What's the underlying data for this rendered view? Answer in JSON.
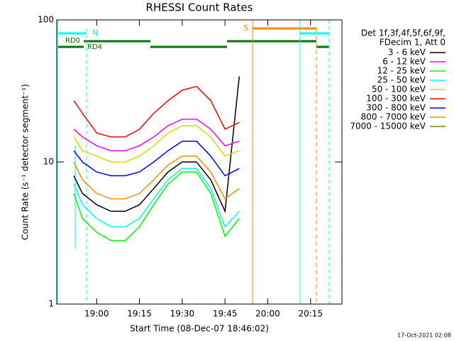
{
  "chart_data": {
    "type": "line",
    "title": "RHESSI Count Rates",
    "ylabel": "Count Rate (s⁻¹ detector segment⁻¹)",
    "xlabel": "Start Time (08-Dec-07 18:46:02)",
    "yscale": "log",
    "ylim": [
      1,
      100
    ],
    "yticks": [
      1,
      10,
      100
    ],
    "xlim": [
      "18:46",
      "20:26"
    ],
    "xticks": [
      "19:00",
      "19:15",
      "19:30",
      "19:45",
      "20:00",
      "20:15"
    ],
    "x": [
      "18:52",
      "18:55",
      "19:00",
      "19:05",
      "19:10",
      "19:15",
      "19:20",
      "19:25",
      "19:30",
      "19:35",
      "19:40",
      "19:45",
      "19:50"
    ],
    "legend_title": [
      "Det 1f,3f,4f,5f,6f,9f,",
      "FDecim 1, Att 0"
    ],
    "annotations": [
      "N",
      "RD0",
      "RD4",
      "S"
    ],
    "timestamp": "17-Oct-2021 02:08",
    "series": [
      {
        "name": "3 - 6 keV",
        "color": "#000000",
        "values": [
          8,
          6,
          5,
          4.5,
          4.5,
          5,
          6.5,
          8.5,
          10,
          10,
          7.5,
          4.5,
          40
        ]
      },
      {
        "name": "6 - 12 keV",
        "color": "#ff00ff",
        "values": [
          17,
          15,
          13,
          12,
          12,
          13,
          15,
          18,
          20,
          20,
          17,
          13,
          14
        ]
      },
      {
        "name": "12 - 25 keV",
        "color": "#00ff00",
        "values": [
          6,
          4,
          3.2,
          2.8,
          2.8,
          3.5,
          5,
          7,
          8.5,
          8.5,
          6,
          3,
          4
        ]
      },
      {
        "name": "25 - 50 keV",
        "color": "#00ffff",
        "values": [
          7,
          5,
          4,
          3.5,
          3.5,
          4,
          5.5,
          7.5,
          9,
          9,
          6.5,
          3.5,
          4.5
        ]
      },
      {
        "name": "50 - 100 keV",
        "color": "#d8d800",
        "values": [
          15,
          12,
          11,
          10,
          10,
          11,
          13,
          16,
          18,
          18,
          15,
          11,
          12
        ]
      },
      {
        "name": "100 - 300 keV",
        "color": "#ff0000",
        "values": [
          27,
          22,
          16,
          15,
          15,
          17,
          22,
          27,
          32,
          34,
          27,
          17,
          19
        ]
      },
      {
        "name": "300 - 800 keV",
        "color": "#0000ff",
        "values": [
          12,
          10,
          8.5,
          8,
          8,
          8.5,
          10,
          12,
          14,
          14,
          11,
          8,
          9
        ]
      },
      {
        "name": "800 - 7000 keV",
        "color": "#ff8c00",
        "values": [
          10,
          7.5,
          6,
          5.5,
          5.5,
          6,
          7.5,
          9.5,
          11,
          11,
          8.5,
          5.5,
          6.5
        ]
      },
      {
        "name": "7000 - 15000 keV",
        "color": "#808000",
        "values": [
          null,
          null,
          null,
          null,
          null,
          null,
          null,
          null,
          null,
          null,
          null,
          null,
          null
        ]
      }
    ]
  }
}
